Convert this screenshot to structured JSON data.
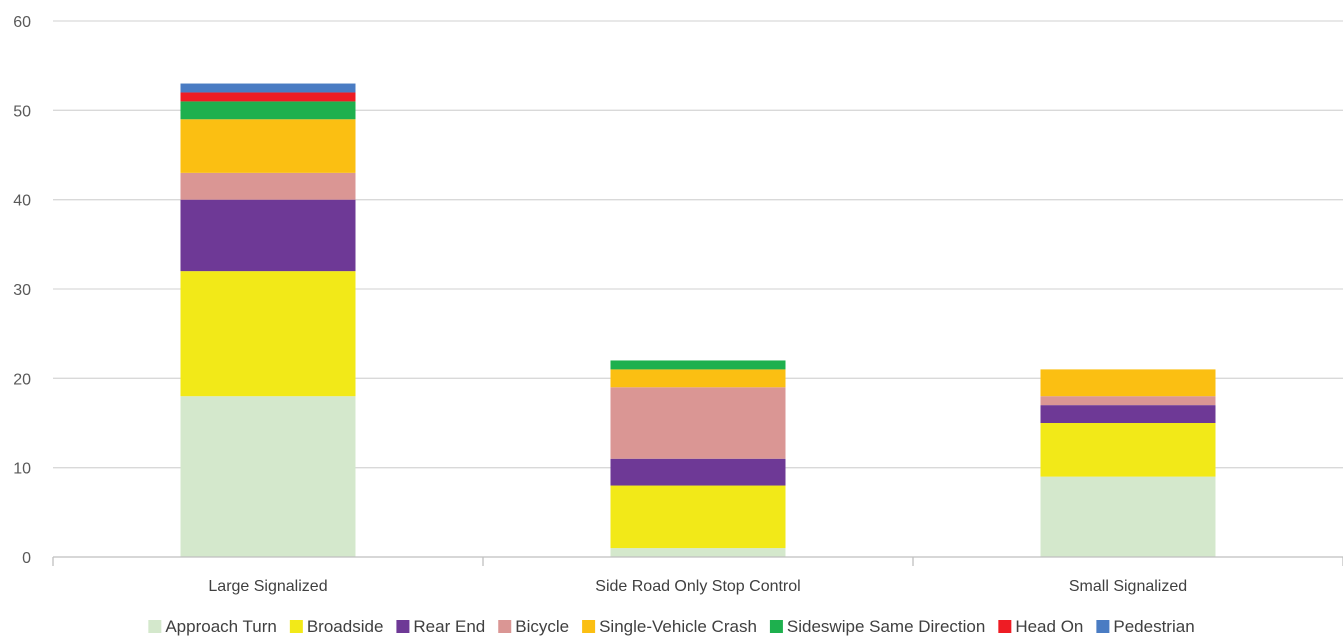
{
  "chart_data": {
    "type": "bar",
    "stacked": true,
    "categories": [
      "Large Signalized",
      "Side Road Only Stop Control",
      "Small Signalized"
    ],
    "ylim": [
      0,
      60
    ],
    "yticks": [
      0,
      10,
      20,
      30,
      40,
      50,
      60
    ],
    "grid": true,
    "legend_position": "bottom",
    "series": [
      {
        "name": "Approach Turn",
        "color": "#d4e8cc",
        "values": [
          18,
          1,
          9
        ]
      },
      {
        "name": "Broadside",
        "color": "#f2e918",
        "values": [
          14,
          7,
          6
        ]
      },
      {
        "name": "Rear End",
        "color": "#6e3996",
        "values": [
          8,
          3,
          2
        ]
      },
      {
        "name": "Bicycle",
        "color": "#da9694",
        "values": [
          3,
          8,
          1
        ]
      },
      {
        "name": "Single-Vehicle Crash",
        "color": "#fbbf12",
        "values": [
          6,
          2,
          3
        ]
      },
      {
        "name": "Sideswipe Same Direction",
        "color": "#1eb04e",
        "values": [
          2,
          1,
          0
        ]
      },
      {
        "name": "Head On",
        "color": "#ee1c24",
        "values": [
          1,
          0,
          0
        ]
      },
      {
        "name": "Pedestrian",
        "color": "#4a7cc3",
        "values": [
          1,
          0,
          0
        ]
      }
    ]
  }
}
